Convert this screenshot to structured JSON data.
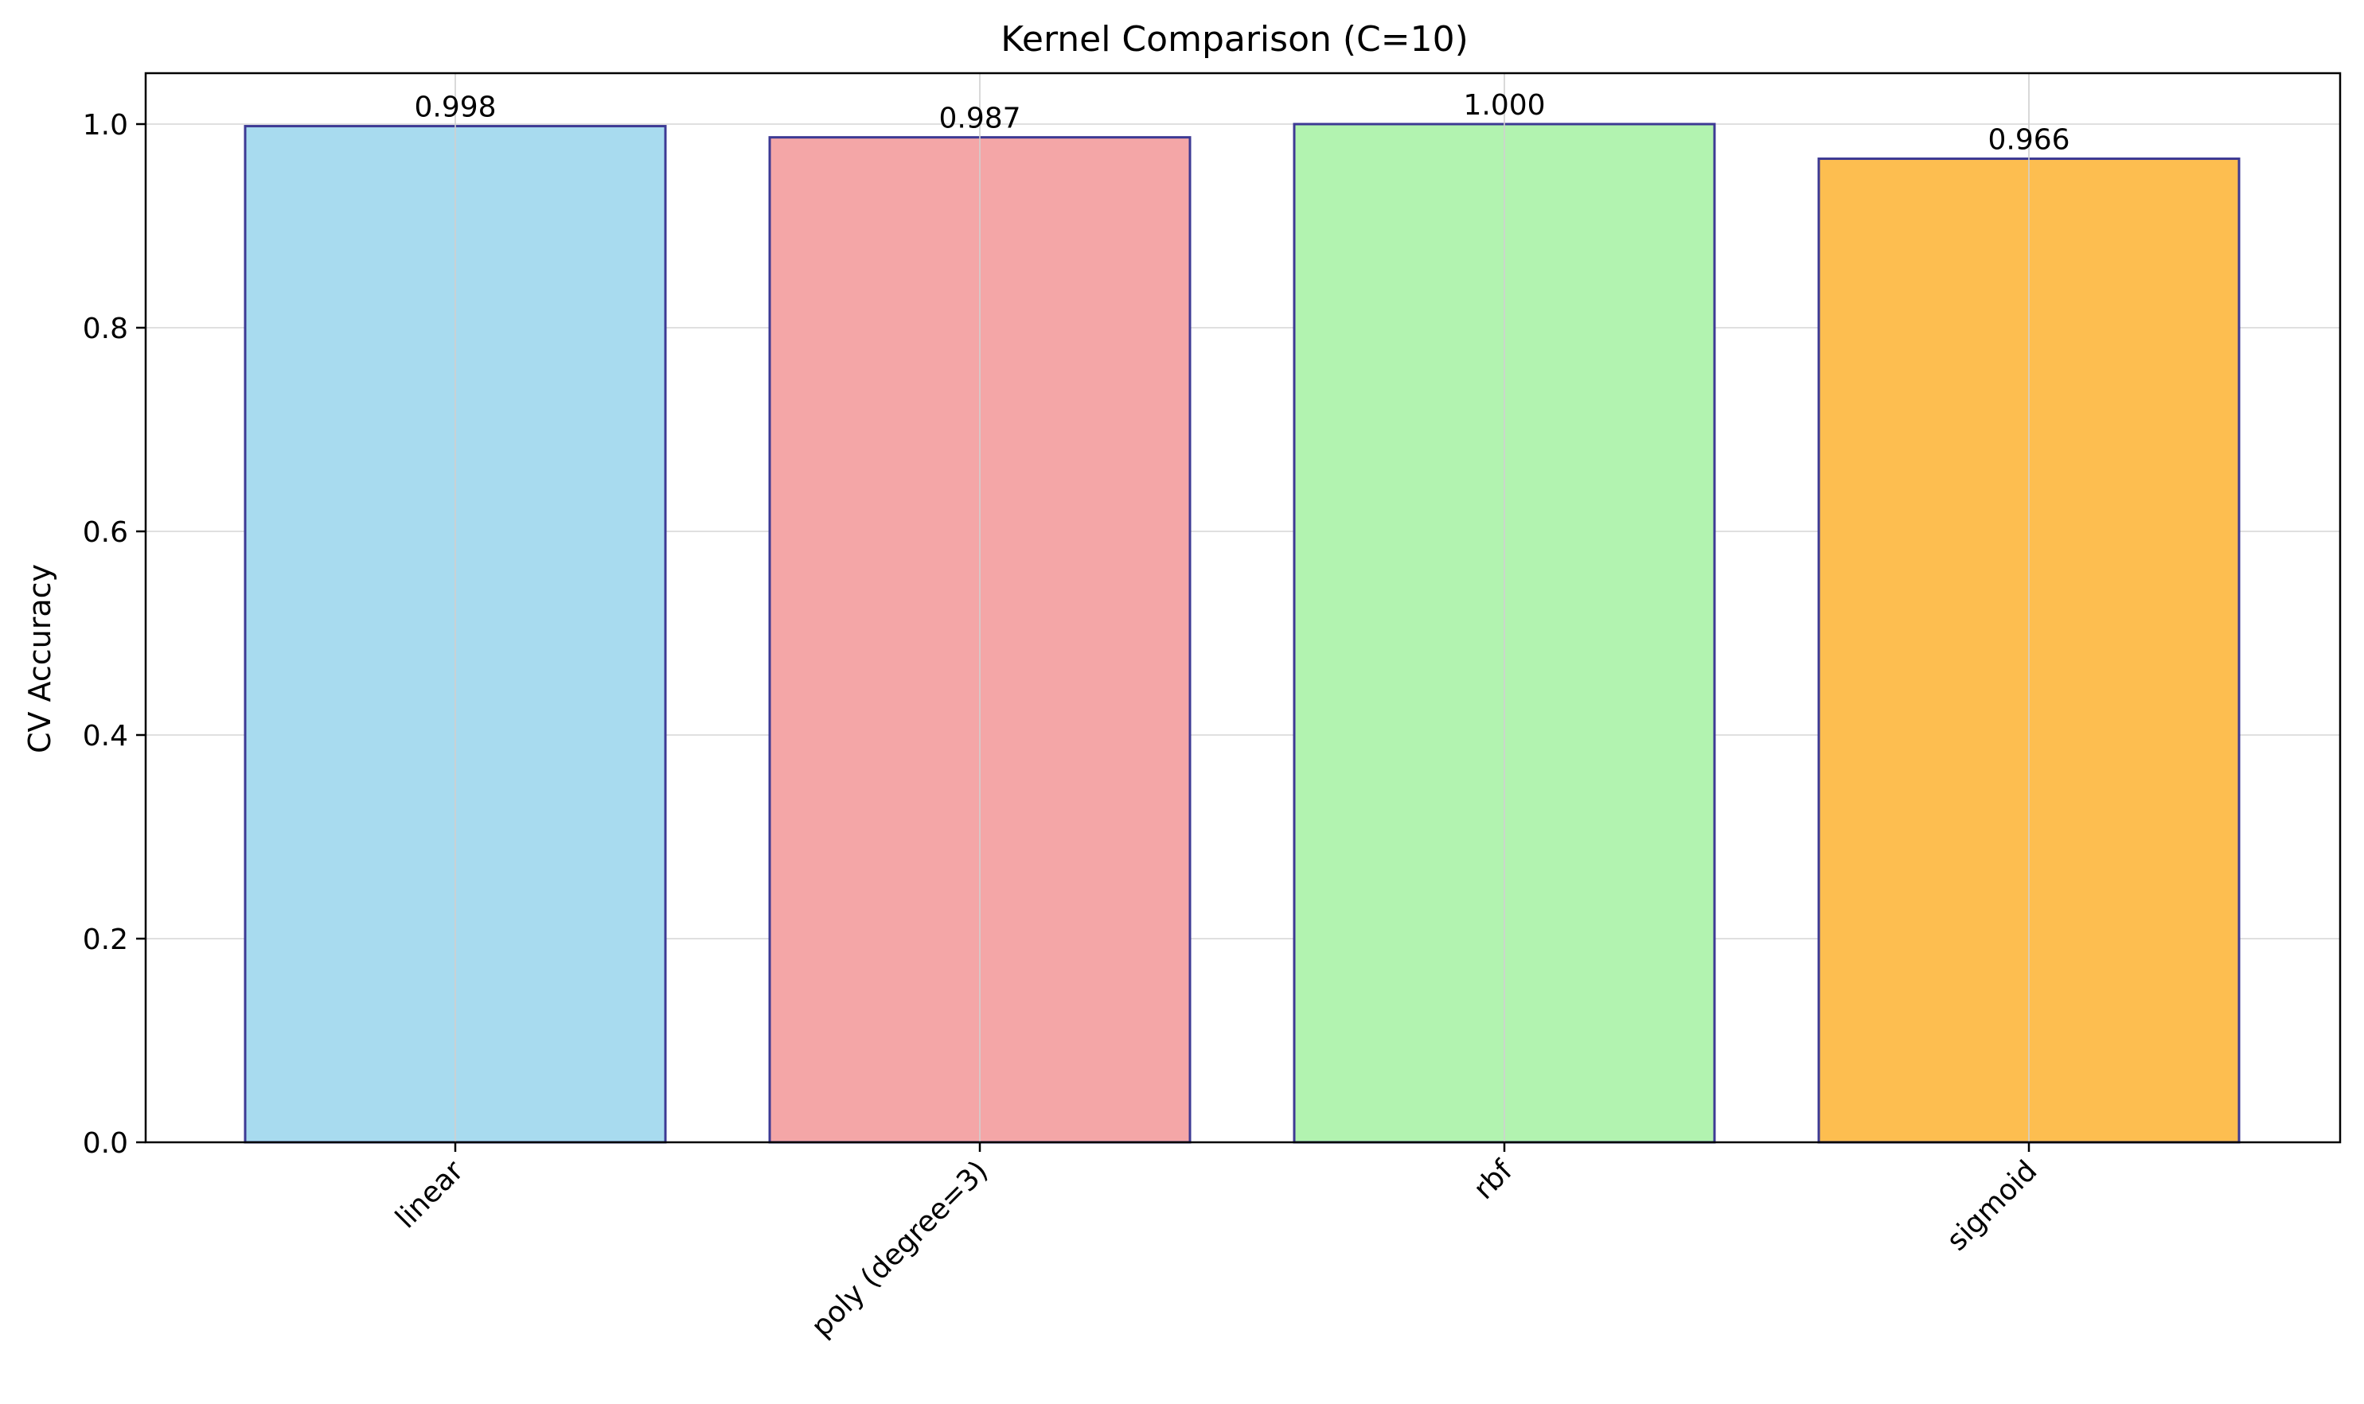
{
  "chart_data": {
    "type": "bar",
    "title": "Kernel Comparison (C=10)",
    "xlabel": "",
    "ylabel": "CV Accuracy",
    "categories": [
      "linear",
      "poly (degree=3)",
      "rbf",
      "sigmoid"
    ],
    "values": [
      0.998,
      0.987,
      1.0,
      0.966
    ],
    "value_labels": [
      "0.998",
      "0.987",
      "1.000",
      "0.966"
    ],
    "ylim": [
      0,
      1.05
    ],
    "yticks": [
      0.0,
      0.2,
      0.4,
      0.6,
      0.8,
      1.0
    ],
    "ytick_labels": [
      "0.0",
      "0.2",
      "0.4",
      "0.6",
      "0.8",
      "1.0"
    ],
    "bar_colors": [
      "#a8dbef",
      "#f4a6a7",
      "#b2f3b0",
      "#fdbe50"
    ],
    "bar_edge_color": "#3d3a94",
    "grid": true,
    "grid_color": "#e0e0e0",
    "xtick_rotation_deg": 45
  }
}
